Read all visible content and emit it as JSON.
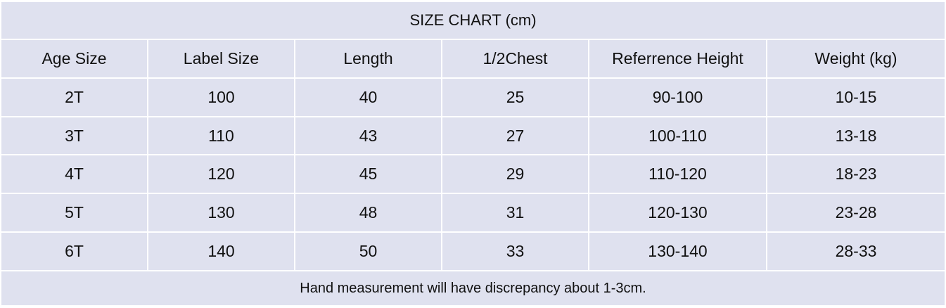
{
  "table": {
    "title": "SIZE CHART (cm)",
    "header": [
      "Age Size",
      "Label Size",
      "Length",
      "1/2Chest",
      "Referrence Height",
      "Weight (kg)"
    ],
    "rows": [
      [
        "2T",
        100,
        40,
        25,
        "90-100",
        "10-15"
      ],
      [
        "3T",
        110,
        43,
        27,
        "100-110",
        "13-18"
      ],
      [
        "4T",
        120,
        45,
        29,
        "110-120",
        "18-23"
      ],
      [
        "5T",
        130,
        48,
        31,
        "120-130",
        "23-28"
      ],
      [
        "6T",
        140,
        50,
        33,
        "130-140",
        "28-33"
      ]
    ],
    "footer": "Hand measurement will have discrepancy about 1-3cm."
  }
}
